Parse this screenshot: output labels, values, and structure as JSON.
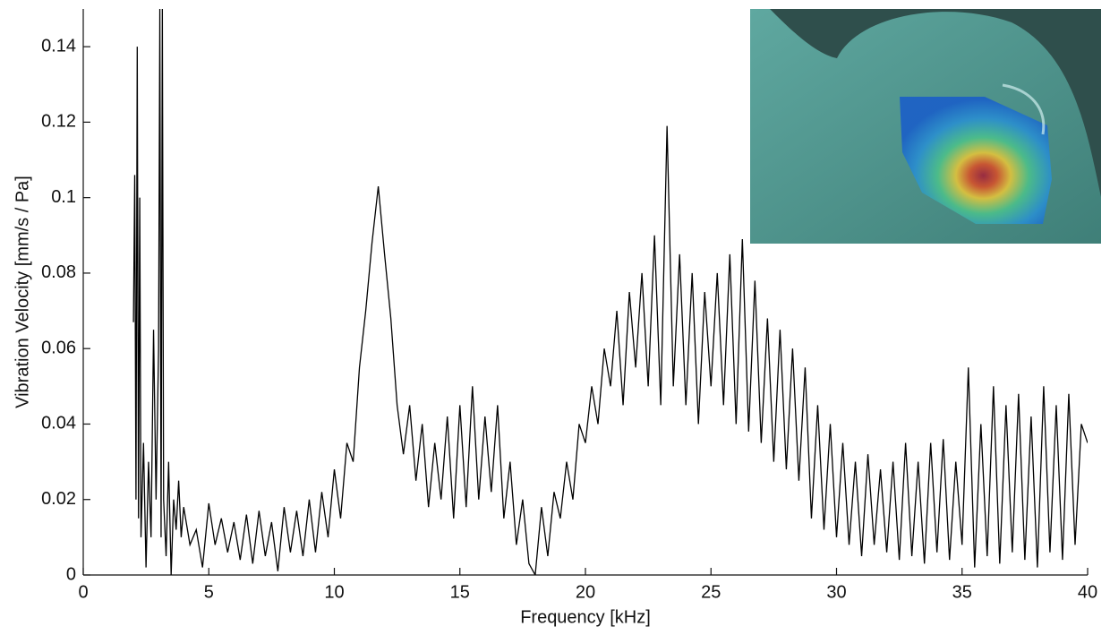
{
  "chart_data": {
    "type": "line",
    "xlabel": "Frequency [kHz]",
    "ylabel": "Vibration Velocity [mm/s / Pa]",
    "color": "#000000",
    "xlim": [
      0,
      40
    ],
    "xticks": [
      0,
      5,
      10,
      15,
      20,
      25,
      30,
      35,
      40
    ],
    "ylim": [
      0,
      0.15
    ],
    "yticks": [
      0,
      0.02,
      0.04,
      0.06,
      0.08,
      0.1,
      0.12,
      0.14
    ],
    "x": [
      2,
      2.05,
      2.1,
      2.15,
      2.2,
      2.25,
      2.3,
      2.4,
      2.5,
      2.6,
      2.7,
      2.8,
      2.9,
      3.0,
      3.05,
      3.1,
      3.15,
      3.2,
      3.3,
      3.4,
      3.5,
      3.6,
      3.7,
      3.8,
      3.9,
      4,
      4.25,
      4.5,
      4.75,
      5,
      5.25,
      5.5,
      5.75,
      6,
      6.25,
      6.5,
      6.75,
      7,
      7.25,
      7.5,
      7.75,
      8,
      8.25,
      8.5,
      8.75,
      9,
      9.25,
      9.5,
      9.75,
      10,
      10.25,
      10.5,
      10.75,
      11,
      11.25,
      11.5,
      11.75,
      12,
      12.25,
      12.5,
      12.75,
      13,
      13.25,
      13.5,
      13.75,
      14,
      14.25,
      14.5,
      14.75,
      15,
      15.25,
      15.5,
      15.75,
      16,
      16.25,
      16.5,
      16.75,
      17,
      17.25,
      17.5,
      17.75,
      18,
      18.25,
      18.5,
      18.75,
      19,
      19.25,
      19.5,
      19.75,
      20,
      20.25,
      20.5,
      20.75,
      21,
      21.25,
      21.5,
      21.75,
      22,
      22.25,
      22.5,
      22.75,
      23,
      23.25,
      23.5,
      23.75,
      24,
      24.25,
      24.5,
      24.75,
      25,
      25.25,
      25.5,
      25.75,
      26,
      26.25,
      26.5,
      26.75,
      27,
      27.25,
      27.5,
      27.75,
      28,
      28.25,
      28.5,
      28.75,
      29,
      29.25,
      29.5,
      29.75,
      30,
      30.25,
      30.5,
      30.75,
      31,
      31.25,
      31.5,
      31.75,
      32,
      32.25,
      32.5,
      32.75,
      33,
      33.25,
      33.5,
      33.75,
      34,
      34.25,
      34.5,
      34.75,
      35,
      35.25,
      35.5,
      35.75,
      36,
      36.25,
      36.5,
      36.75,
      37,
      37.25,
      37.5,
      37.75,
      38,
      38.25,
      38.5,
      38.75,
      39,
      39.25,
      39.5,
      39.75,
      40
    ],
    "values": [
      0.067,
      0.106,
      0.02,
      0.14,
      0.015,
      0.1,
      0.01,
      0.035,
      0.002,
      0.03,
      0.01,
      0.065,
      0.02,
      0.06,
      0.15,
      0.01,
      0.15,
      0.02,
      0.005,
      0.03,
      0,
      0.02,
      0.012,
      0.025,
      0.01,
      0.018,
      0.008,
      0.012,
      0.002,
      0.019,
      0.008,
      0.015,
      0.006,
      0.014,
      0.004,
      0.016,
      0.003,
      0.017,
      0.005,
      0.014,
      0.001,
      0.018,
      0.006,
      0.017,
      0.005,
      0.02,
      0.006,
      0.022,
      0.01,
      0.028,
      0.015,
      0.035,
      0.03,
      0.055,
      0.07,
      0.088,
      0.103,
      0.085,
      0.068,
      0.045,
      0.032,
      0.045,
      0.025,
      0.04,
      0.018,
      0.035,
      0.02,
      0.042,
      0.015,
      0.045,
      0.018,
      0.05,
      0.02,
      0.042,
      0.022,
      0.045,
      0.015,
      0.03,
      0.008,
      0.02,
      0.003,
      0,
      0.018,
      0.005,
      0.022,
      0.015,
      0.03,
      0.02,
      0.04,
      0.035,
      0.05,
      0.04,
      0.06,
      0.05,
      0.07,
      0.045,
      0.075,
      0.055,
      0.08,
      0.05,
      0.09,
      0.045,
      0.119,
      0.05,
      0.085,
      0.045,
      0.08,
      0.04,
      0.075,
      0.05,
      0.08,
      0.045,
      0.085,
      0.04,
      0.089,
      0.038,
      0.078,
      0.035,
      0.068,
      0.03,
      0.065,
      0.028,
      0.06,
      0.025,
      0.055,
      0.015,
      0.045,
      0.012,
      0.04,
      0.01,
      0.035,
      0.008,
      0.03,
      0.005,
      0.032,
      0.008,
      0.028,
      0.006,
      0.03,
      0.004,
      0.035,
      0.005,
      0.03,
      0.003,
      0.035,
      0.006,
      0.036,
      0.004,
      0.03,
      0.008,
      0.055,
      0.002,
      0.04,
      0.005,
      0.05,
      0.003,
      0.045,
      0.006,
      0.048,
      0.004,
      0.042,
      0.002,
      0.05,
      0.006,
      0.045,
      0.004,
      0.048,
      0.008,
      0.04,
      0.035
    ]
  }
}
